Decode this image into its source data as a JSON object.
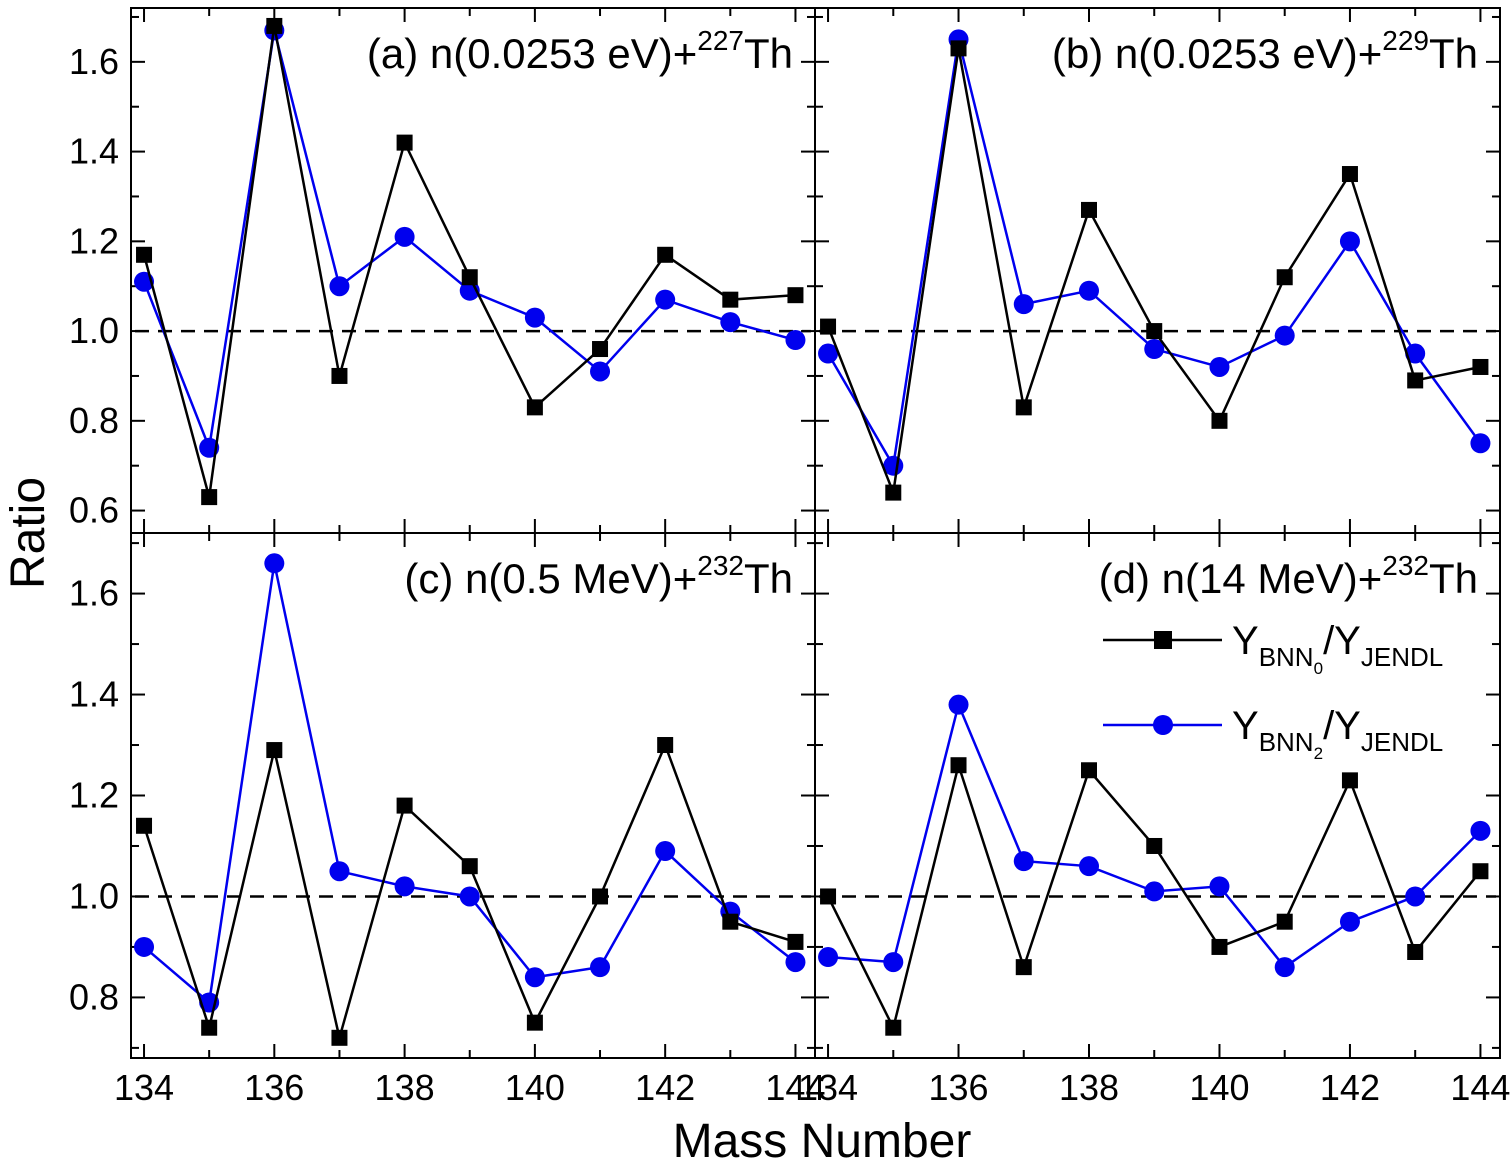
{
  "figure": {
    "xlabel": "Mass Number",
    "ylabel": "Ratio",
    "legend": {
      "placement": "panel-d-upper-right",
      "entries": [
        {
          "main": "Y",
          "sub": "BNN",
          "subsub": "0",
          "tail": "/Y",
          "tailsub": "JENDL",
          "color": "#000000",
          "marker": "square"
        },
        {
          "main": "Y",
          "sub": "BNN",
          "subsub": "2",
          "tail": "/Y",
          "tailsub": "JENDL",
          "color": "#0000ee",
          "marker": "circle"
        }
      ]
    },
    "reference_line": 1.0
  },
  "chart_data": [
    {
      "type": "line",
      "title_pre": "(a) n(0.0253 eV)+",
      "title_sup": "227",
      "title_post": "Th",
      "x": [
        134,
        135,
        136,
        137,
        138,
        139,
        140,
        141,
        142,
        143,
        144
      ],
      "xticks": [
        "134",
        "136",
        "138",
        "140",
        "142",
        "144"
      ],
      "xlim": [
        133.8,
        144.3
      ],
      "ylim": [
        0.55,
        1.72
      ],
      "yticks": [
        "0.6",
        "0.8",
        "1.0",
        "1.2",
        "1.4",
        "1.6"
      ],
      "series": [
        {
          "marker": "square",
          "color": "#000000",
          "values": [
            1.17,
            0.63,
            1.68,
            0.9,
            1.42,
            1.12,
            0.83,
            0.96,
            1.17,
            1.07,
            1.08
          ]
        },
        {
          "marker": "circle",
          "color": "#0000ee",
          "values": [
            1.11,
            0.74,
            1.67,
            1.1,
            1.21,
            1.09,
            1.03,
            0.91,
            1.07,
            1.02,
            0.98
          ]
        }
      ]
    },
    {
      "type": "line",
      "title_pre": "(b) n(0.0253 eV)+",
      "title_sup": "229",
      "title_post": "Th",
      "x": [
        134,
        135,
        136,
        137,
        138,
        139,
        140,
        141,
        142,
        143,
        144
      ],
      "xticks": [
        "134",
        "136",
        "138",
        "140",
        "142",
        "144"
      ],
      "xlim": [
        133.8,
        144.3
      ],
      "ylim": [
        0.55,
        1.72
      ],
      "yticks": [],
      "series": [
        {
          "marker": "square",
          "color": "#000000",
          "values": [
            1.01,
            0.64,
            1.63,
            0.83,
            1.27,
            1.0,
            0.8,
            1.12,
            1.35,
            0.89,
            0.92
          ]
        },
        {
          "marker": "circle",
          "color": "#0000ee",
          "values": [
            0.95,
            0.7,
            1.65,
            1.06,
            1.09,
            0.96,
            0.92,
            0.99,
            1.2,
            0.95,
            0.75
          ]
        }
      ]
    },
    {
      "type": "line",
      "title_pre": "(c) n(0.5 MeV)+",
      "title_sup": "232",
      "title_post": "Th",
      "x": [
        134,
        135,
        136,
        137,
        138,
        139,
        140,
        141,
        142,
        143,
        144
      ],
      "xticks": [
        "134",
        "136",
        "138",
        "140",
        "142",
        "144"
      ],
      "xlim": [
        133.8,
        144.3
      ],
      "ylim": [
        0.68,
        1.72
      ],
      "yticks": [
        "0.8",
        "1.0",
        "1.2",
        "1.4",
        "1.6"
      ],
      "series": [
        {
          "marker": "square",
          "color": "#000000",
          "values": [
            1.14,
            0.74,
            1.29,
            0.72,
            1.18,
            1.06,
            0.75,
            1.0,
            1.3,
            0.95,
            0.91
          ]
        },
        {
          "marker": "circle",
          "color": "#0000ee",
          "values": [
            0.9,
            0.79,
            1.66,
            1.05,
            1.02,
            1.0,
            0.84,
            0.86,
            1.09,
            0.97,
            0.87
          ]
        }
      ]
    },
    {
      "type": "line",
      "title_pre": "(d) n(14 MeV)+",
      "title_sup": "232",
      "title_post": "Th",
      "x": [
        134,
        135,
        136,
        137,
        138,
        139,
        140,
        141,
        142,
        143,
        144
      ],
      "xticks": [
        "134",
        "136",
        "138",
        "140",
        "142",
        "144"
      ],
      "xlim": [
        133.8,
        144.3
      ],
      "ylim": [
        0.68,
        1.72
      ],
      "yticks": [],
      "series": [
        {
          "marker": "square",
          "color": "#000000",
          "values": [
            1.0,
            0.74,
            1.26,
            0.86,
            1.25,
            1.1,
            0.9,
            0.95,
            1.23,
            0.89,
            1.05
          ]
        },
        {
          "marker": "circle",
          "color": "#0000ee",
          "values": [
            0.88,
            0.87,
            1.38,
            1.07,
            1.06,
            1.01,
            1.02,
            0.86,
            0.95,
            1.0,
            1.13
          ]
        }
      ]
    }
  ]
}
